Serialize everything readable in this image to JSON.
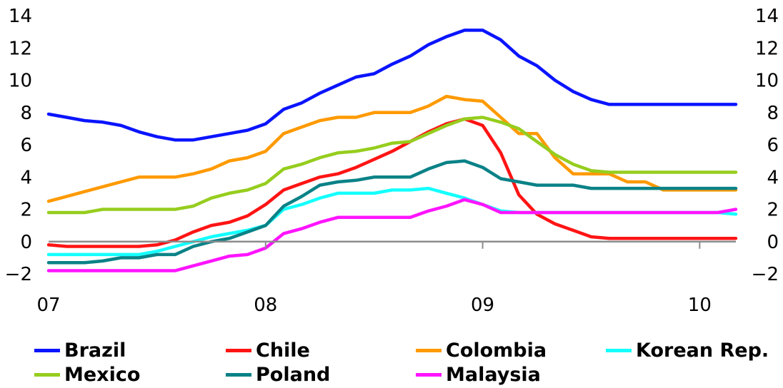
{
  "chart_data": {
    "type": "line",
    "x_ticks": [
      "07",
      "08",
      "09",
      "10"
    ],
    "ylim": [
      -2,
      14
    ],
    "y_ticks": [
      -2,
      0,
      2,
      4,
      6,
      8,
      10,
      12,
      14
    ],
    "y_tick_labels": [
      "−2",
      "0",
      "2",
      "4",
      "6",
      "8",
      "10",
      "12",
      "14"
    ],
    "secondary_y_axis": true,
    "grid": false,
    "legend_position": "bottom",
    "x": [
      2007.0,
      2007.0833,
      2007.1667,
      2007.25,
      2007.3333,
      2007.4167,
      2007.5,
      2007.5833,
      2007.6667,
      2007.75,
      2007.8333,
      2007.9167,
      2008.0,
      2008.0833,
      2008.1667,
      2008.25,
      2008.3333,
      2008.4167,
      2008.5,
      2008.5833,
      2008.6667,
      2008.75,
      2008.8333,
      2008.9167,
      2009.0,
      2009.0833,
      2009.1667,
      2009.25,
      2009.3333,
      2009.4167,
      2009.5,
      2009.5833,
      2009.6667,
      2009.75,
      2009.8333,
      2009.9167,
      2010.0,
      2010.0833,
      2010.1667
    ],
    "series": [
      {
        "name": "Brazil",
        "color": "#0a14ff",
        "values": [
          7.9,
          7.7,
          7.5,
          7.4,
          7.2,
          6.8,
          6.5,
          6.3,
          6.3,
          6.5,
          6.7,
          6.9,
          7.3,
          8.2,
          8.6,
          9.2,
          9.7,
          10.2,
          10.4,
          11.0,
          11.5,
          12.2,
          12.7,
          13.1,
          13.1,
          12.5,
          11.5,
          10.9,
          10.0,
          9.3,
          8.8,
          8.5,
          8.5,
          8.5,
          8.5,
          8.5,
          8.5,
          8.5,
          8.5
        ]
      },
      {
        "name": "Chile",
        "color": "#ff1414",
        "values": [
          -0.2,
          -0.3,
          -0.3,
          -0.3,
          -0.3,
          -0.3,
          -0.2,
          0.1,
          0.6,
          1.0,
          1.2,
          1.6,
          2.3,
          3.2,
          3.6,
          4.0,
          4.2,
          4.6,
          5.1,
          5.6,
          6.2,
          6.8,
          7.3,
          7.6,
          7.2,
          5.5,
          2.9,
          1.7,
          1.1,
          0.7,
          0.3,
          0.2,
          0.2,
          0.2,
          0.2,
          0.2,
          0.2,
          0.2,
          0.2
        ]
      },
      {
        "name": "Colombia",
        "color": "#ff9a00",
        "values": [
          2.5,
          2.8,
          3.1,
          3.4,
          3.7,
          4.0,
          4.0,
          4.0,
          4.2,
          4.5,
          5.0,
          5.2,
          5.6,
          6.7,
          7.1,
          7.5,
          7.7,
          7.7,
          8.0,
          8.0,
          8.0,
          8.4,
          9.0,
          8.8,
          8.7,
          7.7,
          6.7,
          6.7,
          5.2,
          4.2,
          4.2,
          4.2,
          3.7,
          3.7,
          3.2,
          3.2,
          3.2,
          3.2,
          3.2
        ]
      },
      {
        "name": "Korean Rep.",
        "color": "#14ffff",
        "values": [
          -0.8,
          -0.8,
          -0.8,
          -0.8,
          -0.8,
          -0.8,
          -0.6,
          -0.3,
          0.0,
          0.3,
          0.5,
          0.7,
          1.0,
          2.0,
          2.3,
          2.7,
          3.0,
          3.0,
          3.0,
          3.2,
          3.2,
          3.3,
          3.0,
          2.7,
          2.3,
          1.9,
          1.8,
          1.8,
          1.8,
          1.8,
          1.8,
          1.8,
          1.8,
          1.8,
          1.8,
          1.8,
          1.8,
          1.8,
          1.7
        ]
      },
      {
        "name": "Mexico",
        "color": "#96cd1e",
        "values": [
          1.8,
          1.8,
          1.8,
          2.0,
          2.0,
          2.0,
          2.0,
          2.0,
          2.2,
          2.7,
          3.0,
          3.2,
          3.6,
          4.5,
          4.8,
          5.2,
          5.5,
          5.6,
          5.8,
          6.1,
          6.2,
          6.7,
          7.2,
          7.6,
          7.7,
          7.4,
          7.0,
          6.2,
          5.4,
          4.8,
          4.4,
          4.3,
          4.3,
          4.3,
          4.3,
          4.3,
          4.3,
          4.3,
          4.3
        ]
      },
      {
        "name": "Poland",
        "color": "#0a8287",
        "values": [
          -1.3,
          -1.3,
          -1.3,
          -1.2,
          -1.0,
          -1.0,
          -0.8,
          -0.8,
          -0.3,
          0.0,
          0.2,
          0.6,
          1.0,
          2.2,
          2.8,
          3.5,
          3.7,
          3.8,
          4.0,
          4.0,
          4.0,
          4.5,
          4.9,
          5.0,
          4.6,
          3.9,
          3.7,
          3.5,
          3.5,
          3.5,
          3.3,
          3.3,
          3.3,
          3.3,
          3.3,
          3.3,
          3.3,
          3.3,
          3.3
        ]
      },
      {
        "name": "Malaysia",
        "color": "#ff14ff",
        "values": [
          -1.8,
          -1.8,
          -1.8,
          -1.8,
          -1.8,
          -1.8,
          -1.8,
          -1.8,
          -1.5,
          -1.2,
          -0.9,
          -0.8,
          -0.4,
          0.5,
          0.8,
          1.2,
          1.5,
          1.5,
          1.5,
          1.5,
          1.5,
          1.9,
          2.2,
          2.6,
          2.3,
          1.8,
          1.8,
          1.8,
          1.8,
          1.8,
          1.8,
          1.8,
          1.8,
          1.8,
          1.8,
          1.8,
          1.8,
          1.8,
          2.0
        ]
      }
    ]
  }
}
